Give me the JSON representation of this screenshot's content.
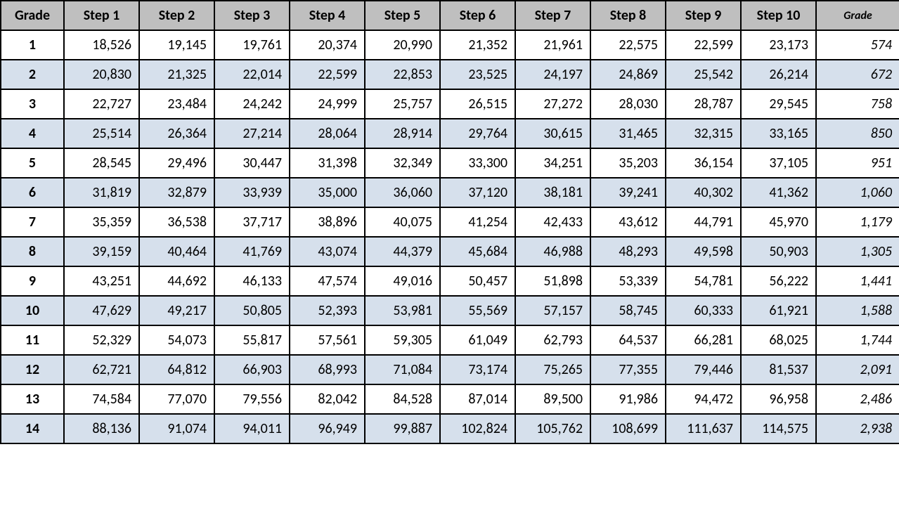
{
  "table": {
    "headers": [
      "Grade",
      "Step 1",
      "Step 2",
      "Step 3",
      "Step 4",
      "Step 5",
      "Step 6",
      "Step 7",
      "Step 8",
      "Step 9",
      "Step 10",
      "Grade"
    ],
    "rows": [
      {
        "grade": "1",
        "steps": [
          "18,526",
          "19,145",
          "19,761",
          "20,374",
          "20,990",
          "21,352",
          "21,961",
          "22,575",
          "22,599",
          "23,173"
        ],
        "wg": "574"
      },
      {
        "grade": "2",
        "steps": [
          "20,830",
          "21,325",
          "22,014",
          "22,599",
          "22,853",
          "23,525",
          "24,197",
          "24,869",
          "25,542",
          "26,214"
        ],
        "wg": "672"
      },
      {
        "grade": "3",
        "steps": [
          "22,727",
          "23,484",
          "24,242",
          "24,999",
          "25,757",
          "26,515",
          "27,272",
          "28,030",
          "28,787",
          "29,545"
        ],
        "wg": "758"
      },
      {
        "grade": "4",
        "steps": [
          "25,514",
          "26,364",
          "27,214",
          "28,064",
          "28,914",
          "29,764",
          "30,615",
          "31,465",
          "32,315",
          "33,165"
        ],
        "wg": "850"
      },
      {
        "grade": "5",
        "steps": [
          "28,545",
          "29,496",
          "30,447",
          "31,398",
          "32,349",
          "33,300",
          "34,251",
          "35,203",
          "36,154",
          "37,105"
        ],
        "wg": "951"
      },
      {
        "grade": "6",
        "steps": [
          "31,819",
          "32,879",
          "33,939",
          "35,000",
          "36,060",
          "37,120",
          "38,181",
          "39,241",
          "40,302",
          "41,362"
        ],
        "wg": "1,060"
      },
      {
        "grade": "7",
        "steps": [
          "35,359",
          "36,538",
          "37,717",
          "38,896",
          "40,075",
          "41,254",
          "42,433",
          "43,612",
          "44,791",
          "45,970"
        ],
        "wg": "1,179"
      },
      {
        "grade": "8",
        "steps": [
          "39,159",
          "40,464",
          "41,769",
          "43,074",
          "44,379",
          "45,684",
          "46,988",
          "48,293",
          "49,598",
          "50,903"
        ],
        "wg": "1,305"
      },
      {
        "grade": "9",
        "steps": [
          "43,251",
          "44,692",
          "46,133",
          "47,574",
          "49,016",
          "50,457",
          "51,898",
          "53,339",
          "54,781",
          "56,222"
        ],
        "wg": "1,441"
      },
      {
        "grade": "10",
        "steps": [
          "47,629",
          "49,217",
          "50,805",
          "52,393",
          "53,981",
          "55,569",
          "57,157",
          "58,745",
          "60,333",
          "61,921"
        ],
        "wg": "1,588"
      },
      {
        "grade": "11",
        "steps": [
          "52,329",
          "54,073",
          "55,817",
          "57,561",
          "59,305",
          "61,049",
          "62,793",
          "64,537",
          "66,281",
          "68,025"
        ],
        "wg": "1,744"
      },
      {
        "grade": "12",
        "steps": [
          "62,721",
          "64,812",
          "66,903",
          "68,993",
          "71,084",
          "73,174",
          "75,265",
          "77,355",
          "79,446",
          "81,537"
        ],
        "wg": "2,091"
      },
      {
        "grade": "13",
        "steps": [
          "74,584",
          "77,070",
          "79,556",
          "82,042",
          "84,528",
          "87,014",
          "89,500",
          "91,986",
          "94,472",
          "96,958"
        ],
        "wg": "2,486"
      },
      {
        "grade": "14",
        "steps": [
          "88,136",
          "91,074",
          "94,011",
          "96,949",
          "99,887",
          "102,824",
          "105,762",
          "108,699",
          "111,637",
          "114,575"
        ],
        "wg": "2,938"
      }
    ],
    "colors": {
      "header_bg": "#bfbfbf",
      "row_even_bg": "#d6e0ec",
      "row_odd_bg": "#ffffff",
      "border": "#000000"
    },
    "font": {
      "family": "Calibri, Arial, sans-serif",
      "cell_size": 20,
      "last_header_size": 16
    }
  }
}
